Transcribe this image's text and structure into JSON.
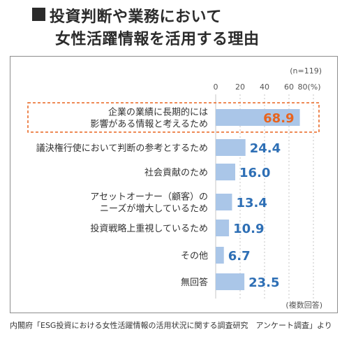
{
  "title": {
    "line1": "投資判断や業務において",
    "line2": "女性活躍情報を活用する理由"
  },
  "footer_note": "内閣府「ESG投資における女性活躍情報の活用状況に関する調査研究　アンケート調査」より",
  "colors": {
    "bar": "#aac6e8",
    "value_label": "#2e6fb5",
    "highlight_label": "#e8641e",
    "highlight_box": "#e8641e"
  },
  "chart_data": {
    "type": "bar",
    "orientation": "horizontal",
    "sample_note": "(n=119)",
    "unit_note": "(複数回答)",
    "xlim": [
      0,
      80
    ],
    "x_ticks": [
      "0",
      "20",
      "40",
      "60",
      "80(%)"
    ],
    "categories": [
      [
        "企業の業績に長期的には",
        "影響がある情報と考えるため"
      ],
      [
        "議決権行使において判断の参考とするため"
      ],
      [
        "社会貢献のため"
      ],
      [
        "アセットオーナー（顧客）の",
        "ニーズが増大しているため"
      ],
      [
        "投資戦略上重視しているため"
      ],
      [
        "その他"
      ],
      [
        "無回答"
      ]
    ],
    "values": [
      68.9,
      24.4,
      16.0,
      13.4,
      10.9,
      6.7,
      23.5
    ],
    "value_labels": [
      "68.9",
      "24.4",
      "16.0",
      "13.4",
      "10.9",
      "6.7",
      "23.5"
    ],
    "highlight_index": 0,
    "grid": true
  }
}
